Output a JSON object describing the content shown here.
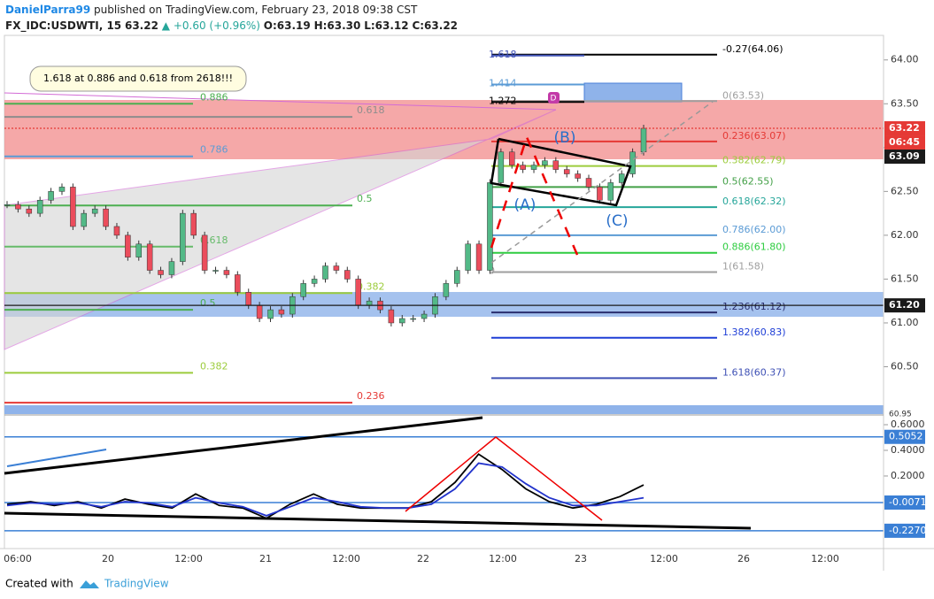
{
  "header": {
    "author": "DanielParra99",
    "published": "published on TradingView.com, February 23, 2018 09:38 CST",
    "symbol": "FX_IDC:USDWTI, 15",
    "last": "63.22",
    "change": "▲ +0.60 (+0.96%)",
    "open": "O:63.19",
    "high": "H:63.30",
    "low": "L:63.12",
    "close": "C:63.22"
  },
  "chart_data": [
    {
      "type": "candlestick",
      "ylim": [
        59.96,
        64.28
      ],
      "yticks": [
        {
          "value": 64,
          "label": "64.00"
        },
        {
          "value": 63.5,
          "label": "63.50"
        },
        {
          "value": 63,
          "label": "63.00"
        },
        {
          "value": 62.5,
          "label": "62.50"
        },
        {
          "value": 62,
          "label": "62.00"
        },
        {
          "value": 61.5,
          "label": "61.50"
        },
        {
          "value": 61,
          "label": "61.00"
        },
        {
          "value": 60.5,
          "label": "60.50"
        }
      ],
      "x_labels": [
        "06:00",
        "20",
        "12:00",
        "21",
        "12:00",
        "22",
        "12:00",
        "23",
        "12:00",
        "26",
        "12:00"
      ],
      "close": [
        62.35,
        62.3,
        62.25,
        62.4,
        62.5,
        62.55,
        62.1,
        62.25,
        62.3,
        62.1,
        62.0,
        61.75,
        61.9,
        61.6,
        61.55,
        61.7,
        62.25,
        62.0,
        61.6,
        61.6,
        61.55,
        61.35,
        61.2,
        61.05,
        61.15,
        61.1,
        61.3,
        61.45,
        61.5,
        61.65,
        61.6,
        61.5,
        61.2,
        61.25,
        61.15,
        61.0,
        61.05,
        61.05,
        61.1,
        61.3,
        61.45,
        61.6,
        61.9,
        61.6,
        62.6,
        62.95,
        62.8,
        62.75,
        62.8,
        62.85,
        62.75,
        62.7,
        62.65,
        62.55,
        62.4,
        62.6,
        62.7,
        62.95,
        63.22
      ],
      "colors": {
        "up": "#53b987",
        "down": "#eb4d5c"
      },
      "fib_right": [
        {
          "label": "-0.27(64.06)",
          "value": 64.06,
          "color": "#000000"
        },
        {
          "label": "0(63.53)",
          "value": 63.53,
          "color": "#9e9e9e"
        },
        {
          "label": "0.236(63.07)",
          "value": 63.07,
          "color": "#e53935"
        },
        {
          "label": "0.382(62.79)",
          "value": 62.79,
          "color": "#9ccc3c"
        },
        {
          "label": "0.5(62.55)",
          "value": 62.55,
          "color": "#43a047"
        },
        {
          "label": "0.618(62.32)",
          "value": 62.32,
          "color": "#26a69a"
        },
        {
          "label": "0.786(62.00)",
          "value": 62.0,
          "color": "#5b9bd5"
        },
        {
          "label": "0.886(61.80)",
          "value": 61.8,
          "color": "#2ecc40"
        },
        {
          "label": "1(61.58)",
          "value": 61.58,
          "color": "#9e9e9e"
        },
        {
          "label": "1.236(61.12)",
          "value": 61.12,
          "color": "#2a2e6e"
        },
        {
          "label": "1.382(60.83)",
          "value": 60.83,
          "color": "#1e3ed6"
        },
        {
          "label": "1.618(60.37)",
          "value": 60.37,
          "color": "#3f51b5"
        }
      ],
      "fib_small": [
        {
          "label": "1.618",
          "value": 64.05,
          "color": "#3f51b5"
        },
        {
          "label": "1.414",
          "value": 63.72,
          "color": "#5b9bd5"
        },
        {
          "label": "1.272",
          "value": 63.52,
          "color": "#000000"
        },
        {
          "label": "0",
          "value": 61.58,
          "color": "#9e9e9e"
        }
      ],
      "fib_left_a": [
        {
          "label": "0.886",
          "value": 63.5,
          "color": "#4caf50"
        },
        {
          "label": "0.786",
          "value": 62.9,
          "color": "#5b9bd5"
        },
        {
          "label": "0.618",
          "value": 61.87,
          "color": "#66bb6a"
        },
        {
          "label": "0.5",
          "value": 61.15,
          "color": "#4caf50"
        },
        {
          "label": "0.382",
          "value": 60.43,
          "color": "#9ccc3c"
        }
      ],
      "fib_left_b": [
        {
          "label": "0.618",
          "value": 63.35,
          "color": "#8d8d8d"
        },
        {
          "label": "0.5",
          "value": 62.34,
          "color": "#4caf50"
        },
        {
          "label": "0.382",
          "value": 61.34,
          "color": "#9ccc3c"
        },
        {
          "label": "0.236",
          "value": 60.09,
          "color": "#e53935"
        }
      ],
      "price_labels": [
        {
          "label": "63.22",
          "value": 63.22,
          "color": "#e53935"
        },
        {
          "label": "61.20",
          "value": 61.2,
          "color": "#1a1a1a"
        }
      ],
      "countdown": "06:45",
      "prev_close": "63.09",
      "hidden_label": "60.95",
      "annotation": "1.618 at 0.886 and 0.618 from 2618!!!",
      "waves": [
        "(A)",
        "(B)",
        "(C)",
        "D"
      ]
    },
    {
      "type": "line",
      "ylim": [
        -0.366,
        0.669
      ],
      "yticks": [
        {
          "value": 0.6,
          "label": "0.6000"
        },
        {
          "value": 0.4,
          "label": "0.4000"
        },
        {
          "value": 0.2,
          "label": "0.2000"
        }
      ],
      "levels": [
        {
          "label": "0.5052",
          "value": 0.5052
        },
        {
          "label": "-0.0071",
          "value": -0.0071
        },
        {
          "label": "-0.2270",
          "value": -0.227
        }
      ],
      "series": [
        {
          "color": "#000000",
          "values": [
            -0.02,
            0.0,
            -0.03,
            0.0,
            -0.05,
            0.02,
            -0.02,
            -0.05,
            0.06,
            -0.03,
            -0.05,
            -0.13,
            -0.02,
            0.06,
            -0.02,
            -0.05,
            -0.05,
            -0.05,
            0.0,
            0.15,
            0.37,
            0.25,
            0.1,
            0.0,
            -0.05,
            -0.02,
            0.04,
            0.13
          ]
        },
        {
          "color": "#2233cc",
          "values": [
            -0.03,
            -0.01,
            -0.02,
            -0.01,
            -0.04,
            0.0,
            -0.01,
            -0.04,
            0.03,
            -0.01,
            -0.04,
            -0.11,
            -0.04,
            0.03,
            0.0,
            -0.04,
            -0.05,
            -0.05,
            -0.02,
            0.1,
            0.3,
            0.27,
            0.14,
            0.03,
            -0.03,
            -0.03,
            0.0,
            0.03
          ]
        }
      ]
    }
  ],
  "footer": {
    "created": "Created with",
    "brand": "TradingView"
  }
}
